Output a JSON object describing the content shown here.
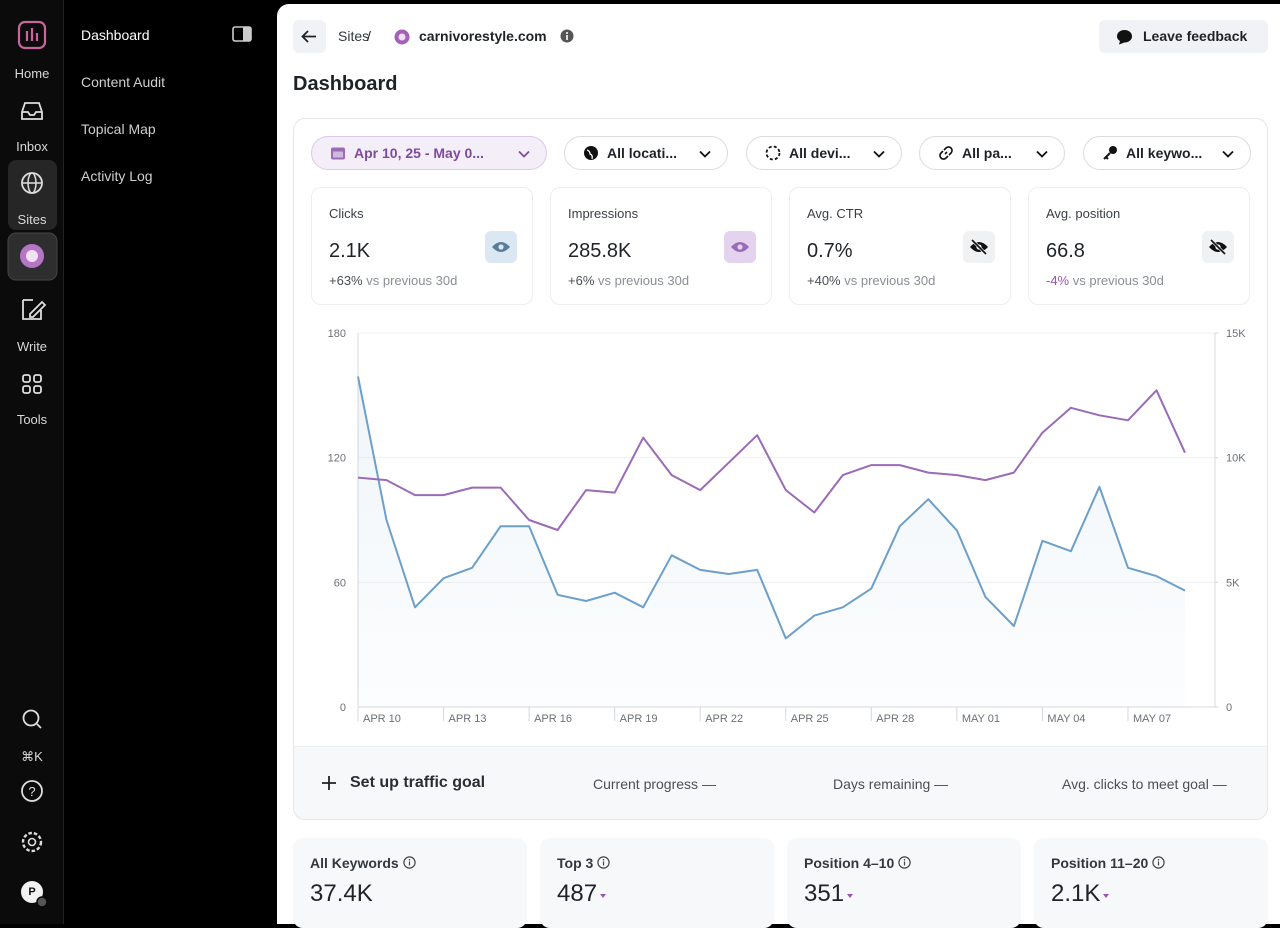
{
  "rail": {
    "items": [
      "Home",
      "Inbox",
      "Sites",
      "Write",
      "Tools"
    ],
    "shortcut": "⌘K",
    "avatar": "P"
  },
  "nav": [
    "Dashboard",
    "Content Audit",
    "Topical Map",
    "Activity Log"
  ],
  "header": {
    "crumb": "Sites",
    "separator": "/",
    "site": "carnivorestyle.com",
    "feedback": "Leave feedback",
    "title": "Dashboard"
  },
  "filters": [
    "Apr 10, 25 - May 0...",
    "All locati...",
    "All devi...",
    "All pa...",
    "All keywo..."
  ],
  "metrics": [
    {
      "label": "Clicks",
      "value": "2.1K",
      "change": "+63%",
      "compare": "vs previous 30d"
    },
    {
      "label": "Impressions",
      "value": "285.8K",
      "change": "+6%",
      "compare": "vs previous 30d"
    },
    {
      "label": "Avg. CTR",
      "value": "0.7%",
      "change": "+40%",
      "compare": "vs previous 30d"
    },
    {
      "label": "Avg. position",
      "value": "66.8",
      "change": "-4%",
      "compare": "vs previous 30d"
    }
  ],
  "chart_data": {
    "type": "line",
    "categories": [
      "APR 10",
      null,
      null,
      "APR 13",
      null,
      null,
      "APR 16",
      null,
      null,
      "APR 19",
      null,
      null,
      "APR 22",
      null,
      null,
      "APR 25",
      null,
      null,
      "APR 28",
      null,
      null,
      "MAY 01",
      null,
      null,
      "MAY 04",
      null,
      null,
      "MAY 07",
      null,
      null
    ],
    "series": [
      {
        "color": "#6c9fca",
        "axis": "y",
        "values": [
          159,
          90,
          48,
          62,
          67,
          87,
          87,
          54,
          51,
          55,
          48,
          73,
          66,
          64,
          66,
          33,
          44,
          48,
          57,
          87,
          100,
          85,
          53,
          39,
          80,
          75,
          106,
          67,
          63,
          56
        ]
      },
      {
        "color": "#9a6bb6",
        "axis": "y2",
        "values": [
          9200,
          9100,
          8500,
          8500,
          8800,
          8800,
          7500,
          7100,
          8700,
          8600,
          10800,
          9300,
          8700,
          9800,
          10900,
          8700,
          7800,
          9300,
          9700,
          9700,
          9400,
          9300,
          9100,
          9400,
          11000,
          12000,
          11700,
          11500,
          12700,
          10200
        ]
      }
    ],
    "ylim": [
      0,
      180
    ],
    "yticks": [
      0,
      60,
      120,
      180
    ],
    "y2lim": [
      0,
      15000
    ],
    "y2ticks": [
      0,
      {
        "value": 5000,
        "label": "5K"
      },
      {
        "value": 10000,
        "label": "10K"
      },
      {
        "value": 15000,
        "label": "15K"
      }
    ],
    "grid": true
  },
  "goal": {
    "action": "Set up traffic goal",
    "items": [
      {
        "label": "Current progress",
        "value": "—"
      },
      {
        "label": "Days remaining",
        "value": "—"
      },
      {
        "label": "Avg. clicks to meet goal",
        "value": "—"
      }
    ]
  },
  "keywords": [
    {
      "label": "All Keywords",
      "value": "37.4K"
    },
    {
      "label": "Top 3",
      "value": "487"
    },
    {
      "label": "Position 4–10",
      "value": "351"
    },
    {
      "label": "Position 11–20",
      "value": "2.1K"
    }
  ]
}
